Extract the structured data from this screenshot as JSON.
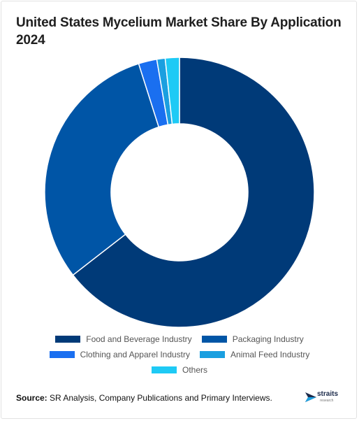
{
  "title": "United States Mycelium Market Share By Application 2024",
  "footer": {
    "source_label": "Source:",
    "source_text": "SR Analysis, Company Publications and Primary Interviews."
  },
  "logo": {
    "word": "straits",
    "sub": "research",
    "icon": "straits-logo-arrow-icon"
  },
  "chart_data": {
    "type": "pie",
    "title": "United States Mycelium Market Share By Application 2024",
    "donut": true,
    "legend_position": "bottom",
    "categories": [
      "Food and Beverage Industry",
      "Packaging Industry",
      "Clothing and Apparel Industry",
      "Animal Feed Industry",
      "Others"
    ],
    "values": [
      64.5,
      30.6,
      2.2,
      1.0,
      1.7
    ],
    "colors": [
      "#003a78",
      "#0055a6",
      "#1a6ff0",
      "#1a9fe0",
      "#1ecaf5"
    ]
  }
}
